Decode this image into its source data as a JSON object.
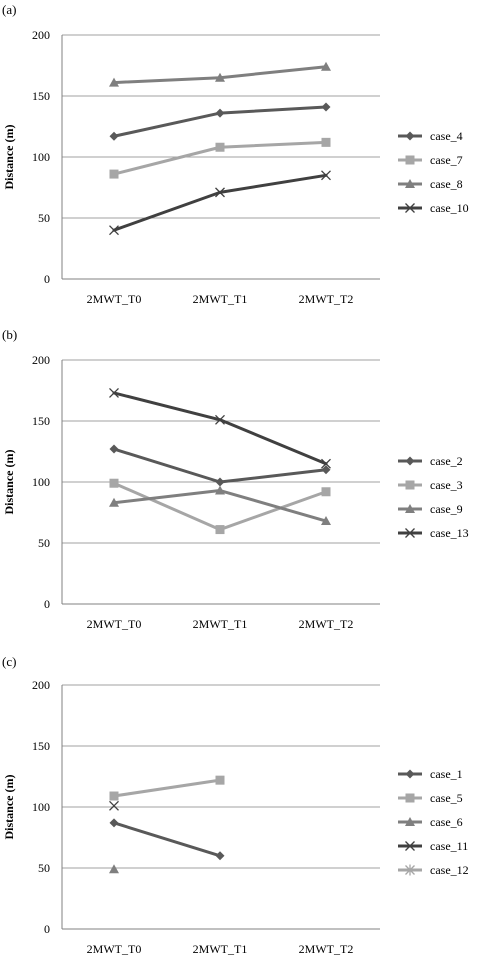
{
  "chart_data": [
    {
      "type": "line",
      "panel_label": "(a)",
      "ylabel": "Distance (m)",
      "categories": [
        "2MWT_T0",
        "2MWT_T1",
        "2MWT_T2"
      ],
      "ylim": [
        0,
        200
      ],
      "yticks": [
        0,
        50,
        100,
        150,
        200
      ],
      "grid": true,
      "legend": "right",
      "series": [
        {
          "name": "case_4",
          "values": [
            117,
            136,
            141
          ],
          "color": "#595959",
          "marker": "diamond"
        },
        {
          "name": "case_7",
          "values": [
            86,
            108,
            112
          ],
          "color": "#a6a6a6",
          "marker": "square"
        },
        {
          "name": "case_8",
          "values": [
            161,
            165,
            174
          ],
          "color": "#7f7f7f",
          "marker": "triangle"
        },
        {
          "name": "case_10",
          "values": [
            40,
            71,
            85
          ],
          "color": "#404040",
          "marker": "x"
        }
      ]
    },
    {
      "type": "line",
      "panel_label": "(b)",
      "ylabel": "Distance (m)",
      "categories": [
        "2MWT_T0",
        "2MWT_T1",
        "2MWT_T2"
      ],
      "ylim": [
        0,
        200
      ],
      "yticks": [
        0,
        50,
        100,
        150,
        200
      ],
      "grid": true,
      "legend": "right",
      "series": [
        {
          "name": "case_2",
          "values": [
            127,
            100,
            110
          ],
          "color": "#595959",
          "marker": "diamond"
        },
        {
          "name": "case_3",
          "values": [
            99,
            61,
            92
          ],
          "color": "#a6a6a6",
          "marker": "square"
        },
        {
          "name": "case_9",
          "values": [
            83,
            93,
            68
          ],
          "color": "#7f7f7f",
          "marker": "triangle"
        },
        {
          "name": "case_13",
          "values": [
            173,
            151,
            115
          ],
          "color": "#404040",
          "marker": "x"
        }
      ]
    },
    {
      "type": "line",
      "panel_label": "(c)",
      "ylabel": "Distance (m)",
      "categories": [
        "2MWT_T0",
        "2MWT_T1",
        "2MWT_T2"
      ],
      "ylim": [
        0,
        200
      ],
      "yticks": [
        0,
        50,
        100,
        150,
        200
      ],
      "grid": true,
      "legend": "right",
      "series": [
        {
          "name": "case_1",
          "values": [
            87,
            60,
            null
          ],
          "color": "#595959",
          "marker": "diamond"
        },
        {
          "name": "case_5",
          "values": [
            109,
            122,
            null
          ],
          "color": "#a6a6a6",
          "marker": "square"
        },
        {
          "name": "case_6",
          "values": [
            49,
            null,
            null
          ],
          "color": "#7f7f7f",
          "marker": "triangle"
        },
        {
          "name": "case_11",
          "values": [
            101,
            null,
            null
          ],
          "color": "#404040",
          "marker": "x"
        },
        {
          "name": "case_12",
          "values": [
            null,
            null,
            null
          ],
          "color": "#a6a6a6",
          "marker": "star"
        }
      ]
    }
  ]
}
